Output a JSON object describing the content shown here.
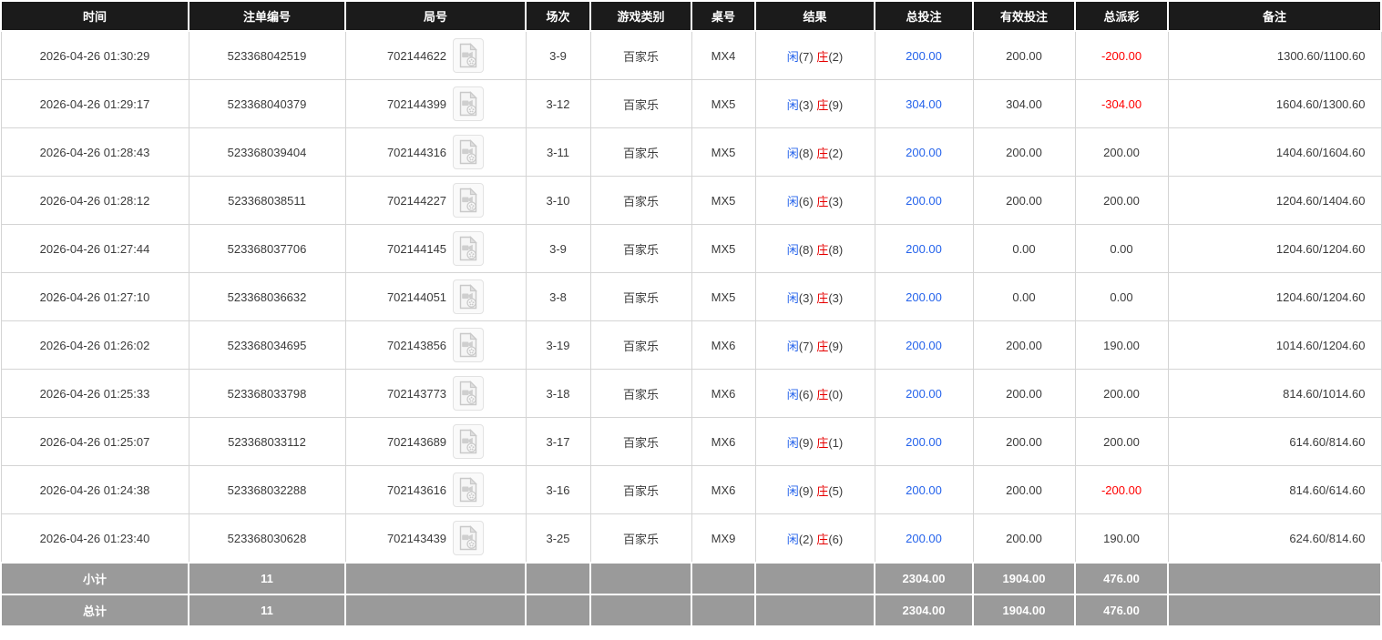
{
  "colors": {
    "header_bg": "#1b1b1b",
    "summary_bg": "#9a9a9a",
    "bet_blue": "#2563eb",
    "loss_red": "#ff0000",
    "banker_red": "#e60000",
    "player_blue": "#2563eb"
  },
  "icons": {
    "round_video": "video-file-icon"
  },
  "table": {
    "columns": [
      {
        "key": "time",
        "label": "时间"
      },
      {
        "key": "bet_id",
        "label": "注单编号"
      },
      {
        "key": "round",
        "label": "局号"
      },
      {
        "key": "session",
        "label": "场次"
      },
      {
        "key": "game_type",
        "label": "游戏类别"
      },
      {
        "key": "table_no",
        "label": "桌号"
      },
      {
        "key": "result",
        "label": "结果"
      },
      {
        "key": "total_bet",
        "label": "总投注"
      },
      {
        "key": "valid_bet",
        "label": "有效投注"
      },
      {
        "key": "payout",
        "label": "总派彩"
      },
      {
        "key": "remark",
        "label": "备注"
      }
    ],
    "rows": [
      {
        "time": "2026-04-26 01:30:29",
        "bet_id": "523368042519",
        "round": "702144622",
        "session": "3-9",
        "game_type": "百家乐",
        "table_no": "MX4",
        "result": {
          "player": "闲",
          "player_value": "(7)",
          "banker": "庄",
          "banker_value": "(2)"
        },
        "total_bet": "200.00",
        "valid_bet": "200.00",
        "payout": "-200.00",
        "remark": "1300.60/1100.60"
      },
      {
        "time": "2026-04-26 01:29:17",
        "bet_id": "523368040379",
        "round": "702144399",
        "session": "3-12",
        "game_type": "百家乐",
        "table_no": "MX5",
        "result": {
          "player": "闲",
          "player_value": "(3)",
          "banker": "庄",
          "banker_value": "(9)"
        },
        "total_bet": "304.00",
        "valid_bet": "304.00",
        "payout": "-304.00",
        "remark": "1604.60/1300.60"
      },
      {
        "time": "2026-04-26 01:28:43",
        "bet_id": "523368039404",
        "round": "702144316",
        "session": "3-11",
        "game_type": "百家乐",
        "table_no": "MX5",
        "result": {
          "player": "闲",
          "player_value": "(8)",
          "banker": "庄",
          "banker_value": "(2)"
        },
        "total_bet": "200.00",
        "valid_bet": "200.00",
        "payout": "200.00",
        "remark": "1404.60/1604.60"
      },
      {
        "time": "2026-04-26 01:28:12",
        "bet_id": "523368038511",
        "round": "702144227",
        "session": "3-10",
        "game_type": "百家乐",
        "table_no": "MX5",
        "result": {
          "player": "闲",
          "player_value": "(6)",
          "banker": "庄",
          "banker_value": "(3)"
        },
        "total_bet": "200.00",
        "valid_bet": "200.00",
        "payout": "200.00",
        "remark": "1204.60/1404.60"
      },
      {
        "time": "2026-04-26 01:27:44",
        "bet_id": "523368037706",
        "round": "702144145",
        "session": "3-9",
        "game_type": "百家乐",
        "table_no": "MX5",
        "result": {
          "player": "闲",
          "player_value": "(8)",
          "banker": "庄",
          "banker_value": "(8)"
        },
        "total_bet": "200.00",
        "valid_bet": "0.00",
        "payout": "0.00",
        "remark": "1204.60/1204.60"
      },
      {
        "time": "2026-04-26 01:27:10",
        "bet_id": "523368036632",
        "round": "702144051",
        "session": "3-8",
        "game_type": "百家乐",
        "table_no": "MX5",
        "result": {
          "player": "闲",
          "player_value": "(3)",
          "banker": "庄",
          "banker_value": "(3)"
        },
        "total_bet": "200.00",
        "valid_bet": "0.00",
        "payout": "0.00",
        "remark": "1204.60/1204.60"
      },
      {
        "time": "2026-04-26 01:26:02",
        "bet_id": "523368034695",
        "round": "702143856",
        "session": "3-19",
        "game_type": "百家乐",
        "table_no": "MX6",
        "result": {
          "player": "闲",
          "player_value": "(7)",
          "banker": "庄",
          "banker_value": "(9)"
        },
        "total_bet": "200.00",
        "valid_bet": "200.00",
        "payout": "190.00",
        "remark": "1014.60/1204.60"
      },
      {
        "time": "2026-04-26 01:25:33",
        "bet_id": "523368033798",
        "round": "702143773",
        "session": "3-18",
        "game_type": "百家乐",
        "table_no": "MX6",
        "result": {
          "player": "闲",
          "player_value": "(6)",
          "banker": "庄",
          "banker_value": "(0)"
        },
        "total_bet": "200.00",
        "valid_bet": "200.00",
        "payout": "200.00",
        "remark": "814.60/1014.60"
      },
      {
        "time": "2026-04-26 01:25:07",
        "bet_id": "523368033112",
        "round": "702143689",
        "session": "3-17",
        "game_type": "百家乐",
        "table_no": "MX6",
        "result": {
          "player": "闲",
          "player_value": "(9)",
          "banker": "庄",
          "banker_value": "(1)"
        },
        "total_bet": "200.00",
        "valid_bet": "200.00",
        "payout": "200.00",
        "remark": "614.60/814.60"
      },
      {
        "time": "2026-04-26 01:24:38",
        "bet_id": "523368032288",
        "round": "702143616",
        "session": "3-16",
        "game_type": "百家乐",
        "table_no": "MX6",
        "result": {
          "player": "闲",
          "player_value": "(9)",
          "banker": "庄",
          "banker_value": "(5)"
        },
        "total_bet": "200.00",
        "valid_bet": "200.00",
        "payout": "-200.00",
        "remark": "814.60/614.60"
      },
      {
        "time": "2026-04-26 01:23:40",
        "bet_id": "523368030628",
        "round": "702143439",
        "session": "3-25",
        "game_type": "百家乐",
        "table_no": "MX9",
        "result": {
          "player": "闲",
          "player_value": "(2)",
          "banker": "庄",
          "banker_value": "(6)"
        },
        "total_bet": "200.00",
        "valid_bet": "200.00",
        "payout": "190.00",
        "remark": "624.60/814.60"
      }
    ],
    "summary_rows": [
      {
        "label": "小计",
        "count": "11",
        "total_bet": "2304.00",
        "valid_bet": "1904.00",
        "payout": "476.00"
      },
      {
        "label": "总计",
        "count": "11",
        "total_bet": "2304.00",
        "valid_bet": "1904.00",
        "payout": "476.00"
      }
    ]
  }
}
